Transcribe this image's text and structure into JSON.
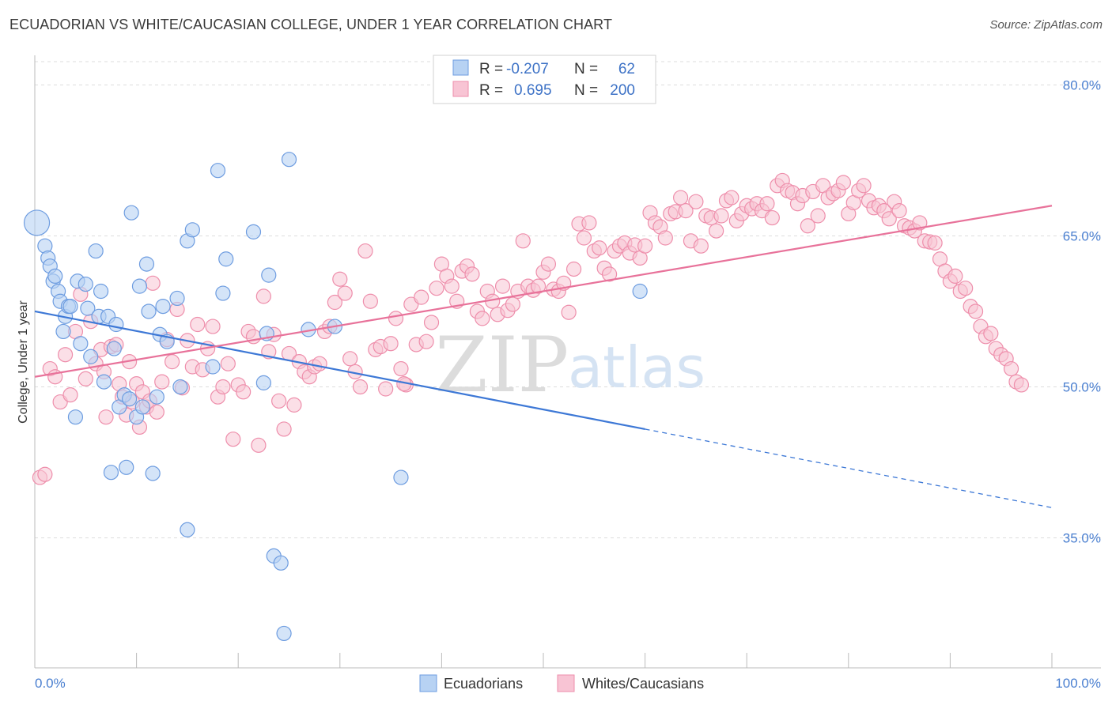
{
  "title": "ECUADORIAN VS WHITE/CAUCASIAN COLLEGE, UNDER 1 YEAR CORRELATION CHART",
  "source": "Source: ZipAtlas.com",
  "watermark": {
    "zip": "ZIP",
    "atlas": "atlas"
  },
  "colors": {
    "blue_fill": "#b7d2f3",
    "blue_stroke": "#6d9ce0",
    "blue_line": "#3d78d6",
    "pink_fill": "#f8c4d4",
    "pink_stroke": "#ee8eab",
    "pink_line": "#e8729a",
    "tick_label": "#4a7fd0",
    "grid": "#dddddd"
  },
  "legend": {
    "rows": [
      {
        "r_label": "R =",
        "r_value": "-0.207",
        "n_label": "N =",
        "n_value": "62"
      },
      {
        "r_label": "R =",
        "r_value": "0.695",
        "n_label": "N =",
        "n_value": "200"
      }
    ]
  },
  "bottom_legend": [
    "Ecuadorians",
    "Whites/Caucasians"
  ],
  "chart_data": {
    "type": "scatter",
    "xlabel": "",
    "ylabel": "College, Under 1 year",
    "xlim": [
      0,
      100
    ],
    "ylim": [
      22,
      82
    ],
    "x_tick_labels": [
      "0.0%",
      "100.0%"
    ],
    "y_ticks": [
      35,
      50,
      65,
      80
    ],
    "y_tick_labels": [
      "35.0%",
      "50.0%",
      "65.0%",
      "80.0%"
    ],
    "grid": true,
    "legend_position": "top-center",
    "series": [
      {
        "name": "Ecuadorians",
        "R": -0.207,
        "N": 62,
        "trend": {
          "x0": 0,
          "y0": 57.5,
          "x1": 60,
          "y1": 45.8,
          "dashed_to_x": 100,
          "dashed_to_y": 38.0
        },
        "points": [
          [
            0.2,
            66.3
          ],
          [
            1.0,
            64.0
          ],
          [
            1.3,
            62.8
          ],
          [
            1.5,
            62.0
          ],
          [
            1.8,
            60.5
          ],
          [
            2.0,
            61.0
          ],
          [
            2.3,
            59.5
          ],
          [
            2.5,
            58.5
          ],
          [
            2.8,
            55.5
          ],
          [
            3.0,
            57.0
          ],
          [
            3.3,
            58.0
          ],
          [
            3.5,
            58.0
          ],
          [
            4.0,
            47.0
          ],
          [
            4.2,
            60.5
          ],
          [
            4.5,
            54.3
          ],
          [
            5.0,
            60.2
          ],
          [
            5.2,
            57.8
          ],
          [
            5.5,
            53.0
          ],
          [
            6.0,
            63.5
          ],
          [
            6.3,
            57.0
          ],
          [
            6.5,
            59.5
          ],
          [
            6.8,
            50.5
          ],
          [
            7.2,
            57.0
          ],
          [
            7.5,
            41.5
          ],
          [
            7.8,
            53.8
          ],
          [
            8.0,
            56.2
          ],
          [
            8.3,
            48.0
          ],
          [
            8.8,
            49.2
          ],
          [
            9.0,
            42.0
          ],
          [
            9.3,
            48.8
          ],
          [
            9.5,
            67.3
          ],
          [
            10.0,
            47.0
          ],
          [
            10.3,
            60.0
          ],
          [
            10.6,
            48.0
          ],
          [
            11.0,
            62.2
          ],
          [
            11.2,
            57.5
          ],
          [
            11.6,
            41.4
          ],
          [
            12.0,
            49.0
          ],
          [
            12.3,
            55.2
          ],
          [
            12.6,
            58.0
          ],
          [
            13.0,
            54.5
          ],
          [
            14.0,
            58.8
          ],
          [
            14.3,
            50.0
          ],
          [
            15.0,
            64.5
          ],
          [
            15.0,
            35.8
          ],
          [
            15.5,
            65.6
          ],
          [
            17.5,
            52.0
          ],
          [
            18.0,
            71.5
          ],
          [
            18.5,
            59.3
          ],
          [
            18.8,
            62.7
          ],
          [
            21.5,
            65.4
          ],
          [
            22.5,
            50.4
          ],
          [
            22.8,
            55.3
          ],
          [
            23.0,
            61.1
          ],
          [
            23.5,
            33.2
          ],
          [
            24.2,
            32.5
          ],
          [
            24.5,
            25.5
          ],
          [
            25.0,
            72.6
          ],
          [
            26.9,
            55.7
          ],
          [
            29.5,
            56.0
          ],
          [
            36.0,
            41.0
          ],
          [
            59.5,
            59.5
          ]
        ]
      },
      {
        "name": "Whites/Caucasians",
        "R": 0.695,
        "N": 200,
        "trend": {
          "x0": 0,
          "y0": 51.0,
          "x1": 100,
          "y1": 68.0
        },
        "points": [
          [
            0.5,
            41.0
          ],
          [
            1.0,
            41.3
          ],
          [
            1.5,
            51.8
          ],
          [
            2.0,
            51.0
          ],
          [
            2.5,
            48.5
          ],
          [
            3.0,
            53.2
          ],
          [
            3.5,
            49.2
          ],
          [
            4.0,
            55.5
          ],
          [
            4.5,
            59.2
          ],
          [
            5.0,
            50.8
          ],
          [
            5.5,
            56.5
          ],
          [
            6.0,
            52.3
          ],
          [
            6.5,
            53.7
          ],
          [
            6.8,
            51.5
          ],
          [
            7.0,
            47.0
          ],
          [
            7.5,
            54.0
          ],
          [
            8.0,
            54.2
          ],
          [
            8.3,
            50.3
          ],
          [
            8.6,
            49.0
          ],
          [
            9.0,
            47.2
          ],
          [
            9.3,
            52.5
          ],
          [
            9.6,
            48.5
          ],
          [
            10.0,
            50.3
          ],
          [
            10.3,
            46.0
          ],
          [
            10.6,
            49.5
          ],
          [
            11.0,
            48.0
          ],
          [
            11.3,
            48.6
          ],
          [
            11.6,
            60.3
          ],
          [
            12.0,
            47.5
          ],
          [
            12.5,
            50.5
          ],
          [
            13.0,
            54.7
          ],
          [
            13.5,
            52.5
          ],
          [
            14.0,
            57.7
          ],
          [
            14.5,
            49.9
          ],
          [
            15.0,
            54.6
          ],
          [
            15.5,
            52.0
          ],
          [
            16.0,
            56.2
          ],
          [
            16.5,
            51.7
          ],
          [
            17.0,
            53.8
          ],
          [
            17.5,
            56.0
          ],
          [
            18.0,
            49.0
          ],
          [
            18.5,
            50.0
          ],
          [
            19.0,
            52.3
          ],
          [
            19.5,
            44.8
          ],
          [
            20.0,
            50.2
          ],
          [
            20.5,
            49.5
          ],
          [
            21.0,
            55.5
          ],
          [
            21.5,
            55.0
          ],
          [
            22.0,
            44.2
          ],
          [
            22.5,
            59.0
          ],
          [
            23.0,
            53.5
          ],
          [
            23.5,
            55.2
          ],
          [
            24.0,
            48.6
          ],
          [
            24.5,
            45.8
          ],
          [
            25.0,
            53.3
          ],
          [
            25.5,
            48.2
          ],
          [
            26.0,
            52.5
          ],
          [
            26.5,
            51.5
          ],
          [
            27.0,
            51.0
          ],
          [
            27.5,
            52.0
          ],
          [
            28.0,
            52.3
          ],
          [
            28.5,
            55.5
          ],
          [
            29.0,
            56.0
          ],
          [
            29.5,
            58.4
          ],
          [
            30.0,
            60.7
          ],
          [
            30.5,
            59.3
          ],
          [
            31.0,
            52.8
          ],
          [
            31.5,
            51.5
          ],
          [
            32.0,
            50.0
          ],
          [
            32.5,
            63.5
          ],
          [
            33.0,
            58.5
          ],
          [
            33.5,
            53.7
          ],
          [
            34.0,
            54.0
          ],
          [
            34.5,
            49.8
          ],
          [
            35.0,
            54.3
          ],
          [
            35.5,
            56.8
          ],
          [
            36.0,
            51.8
          ],
          [
            36.5,
            50.2
          ],
          [
            37.0,
            58.2
          ],
          [
            37.5,
            54.2
          ],
          [
            38.0,
            58.9
          ],
          [
            38.5,
            54.5
          ],
          [
            39.0,
            56.4
          ],
          [
            39.5,
            59.8
          ],
          [
            40.0,
            62.2
          ],
          [
            40.5,
            61.0
          ],
          [
            41.0,
            60.0
          ],
          [
            41.5,
            58.5
          ],
          [
            42.0,
            61.5
          ],
          [
            42.5,
            62.0
          ],
          [
            43.0,
            61.2
          ],
          [
            43.5,
            57.5
          ],
          [
            44.0,
            56.8
          ],
          [
            44.5,
            59.5
          ],
          [
            45.0,
            58.5
          ],
          [
            45.5,
            57.2
          ],
          [
            46.0,
            60.0
          ],
          [
            46.5,
            57.6
          ],
          [
            47.0,
            58.2
          ],
          [
            47.5,
            59.5
          ],
          [
            48.0,
            64.5
          ],
          [
            48.5,
            60.0
          ],
          [
            49.0,
            59.6
          ],
          [
            49.5,
            60.0
          ],
          [
            50.0,
            61.4
          ],
          [
            50.5,
            62.2
          ],
          [
            51.0,
            59.7
          ],
          [
            51.5,
            59.5
          ],
          [
            52.0,
            60.3
          ],
          [
            52.5,
            57.4
          ],
          [
            53.0,
            61.7
          ],
          [
            53.5,
            66.2
          ],
          [
            54.0,
            64.8
          ],
          [
            54.5,
            66.3
          ],
          [
            55.0,
            63.5
          ],
          [
            55.5,
            63.8
          ],
          [
            56.0,
            61.8
          ],
          [
            56.5,
            61.2
          ],
          [
            57.0,
            63.5
          ],
          [
            57.5,
            64.0
          ],
          [
            58.0,
            64.3
          ],
          [
            58.5,
            63.3
          ],
          [
            59.0,
            64.1
          ],
          [
            59.5,
            62.8
          ],
          [
            60.0,
            64.0
          ],
          [
            60.5,
            67.3
          ],
          [
            61.0,
            66.3
          ],
          [
            61.5,
            65.9
          ],
          [
            62.0,
            64.8
          ],
          [
            62.5,
            67.2
          ],
          [
            63.0,
            67.4
          ],
          [
            63.5,
            68.8
          ],
          [
            64.0,
            67.5
          ],
          [
            64.5,
            64.5
          ],
          [
            65.0,
            68.4
          ],
          [
            65.5,
            64.0
          ],
          [
            66.0,
            67.0
          ],
          [
            66.5,
            66.8
          ],
          [
            67.0,
            65.5
          ],
          [
            67.5,
            67.0
          ],
          [
            68.0,
            68.5
          ],
          [
            68.5,
            68.8
          ],
          [
            69.0,
            66.5
          ],
          [
            69.5,
            67.2
          ],
          [
            70.0,
            68.0
          ],
          [
            70.5,
            67.7
          ],
          [
            71.0,
            68.2
          ],
          [
            71.5,
            67.5
          ],
          [
            72.0,
            68.2
          ],
          [
            72.5,
            66.8
          ],
          [
            73.0,
            70.0
          ],
          [
            73.5,
            70.5
          ],
          [
            74.0,
            69.5
          ],
          [
            74.5,
            69.3
          ],
          [
            75.0,
            68.2
          ],
          [
            75.5,
            69.0
          ],
          [
            76.0,
            66.0
          ],
          [
            76.5,
            69.4
          ],
          [
            77.0,
            67.0
          ],
          [
            77.5,
            70.0
          ],
          [
            78.0,
            68.8
          ],
          [
            78.5,
            69.2
          ],
          [
            79.0,
            69.5
          ],
          [
            79.5,
            70.3
          ],
          [
            80.0,
            67.2
          ],
          [
            80.5,
            68.3
          ],
          [
            81.0,
            69.5
          ],
          [
            81.5,
            70.0
          ],
          [
            82.0,
            68.5
          ],
          [
            82.5,
            67.8
          ],
          [
            83.0,
            68.0
          ],
          [
            83.5,
            67.5
          ],
          [
            84.0,
            66.7
          ],
          [
            84.5,
            68.4
          ],
          [
            85.0,
            67.5
          ],
          [
            85.5,
            66.0
          ],
          [
            86.0,
            65.8
          ],
          [
            86.5,
            65.5
          ],
          [
            87.0,
            66.3
          ],
          [
            87.5,
            64.5
          ],
          [
            88.0,
            64.4
          ],
          [
            88.5,
            64.3
          ],
          [
            89.0,
            62.7
          ],
          [
            89.5,
            61.5
          ],
          [
            90.0,
            60.5
          ],
          [
            90.5,
            61.0
          ],
          [
            91.0,
            59.5
          ],
          [
            91.5,
            59.8
          ],
          [
            92.0,
            58.0
          ],
          [
            92.5,
            57.5
          ],
          [
            93.0,
            56.0
          ],
          [
            93.5,
            55.0
          ],
          [
            94.0,
            55.3
          ],
          [
            94.5,
            53.8
          ],
          [
            95.0,
            53.2
          ],
          [
            95.5,
            52.8
          ],
          [
            96.0,
            51.8
          ],
          [
            96.5,
            50.5
          ],
          [
            97.0,
            50.2
          ],
          [
            36.3,
            50.3
          ]
        ]
      }
    ]
  }
}
